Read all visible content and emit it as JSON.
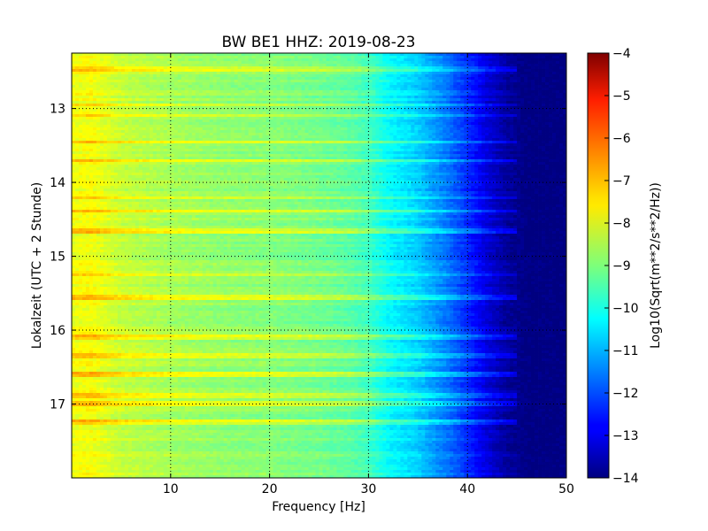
{
  "chart_data": {
    "type": "heatmap",
    "title": "BW BE1 HHZ: 2019-08-23",
    "xlabel": "Frequency [Hz]",
    "ylabel": "Lokalzeit (UTC + 2 Stunde)",
    "xlim": [
      0,
      50
    ],
    "ylim": [
      12.25,
      18.0
    ],
    "y_inverted": true,
    "x_ticks": [
      10,
      20,
      30,
      40,
      50
    ],
    "x_tick_labels": [
      "10",
      "20",
      "30",
      "40",
      "50"
    ],
    "y_ticks": [
      13,
      14,
      15,
      16,
      17
    ],
    "y_tick_labels": [
      "13",
      "14",
      "15",
      "16",
      "17"
    ],
    "grid": true,
    "colormap": "jet",
    "colorbar": {
      "label": "Log10(Sqrt(m**2/s**2/Hz))",
      "range": [
        -14,
        -4
      ],
      "ticks": [
        -4,
        -5,
        -6,
        -7,
        -8,
        -9,
        -10,
        -11,
        -12,
        -13,
        -14
      ],
      "tick_labels": [
        "−4",
        "−5",
        "−6",
        "−7",
        "−8",
        "−9",
        "−10",
        "−11",
        "−12",
        "−13",
        "−14"
      ]
    },
    "spectral_profile": {
      "frequency_hz": [
        0,
        2,
        5,
        10,
        15,
        20,
        25,
        28,
        30,
        32,
        35,
        38,
        40,
        42,
        44,
        46,
        50
      ],
      "log_amplitude": [
        -7.9,
        -7.8,
        -8.3,
        -8.6,
        -8.8,
        -8.9,
        -9.1,
        -9.3,
        -9.6,
        -10.2,
        -10.7,
        -11.6,
        -12.3,
        -13.1,
        -13.7,
        -14.0,
        -14.0
      ]
    },
    "strong_rows_local_time": [
      12.47,
      12.95,
      13.1,
      13.45,
      13.7,
      14.2,
      14.38,
      14.65,
      15.25,
      15.55,
      16.1,
      16.35,
      16.6,
      16.88,
      17.0,
      17.25
    ]
  }
}
